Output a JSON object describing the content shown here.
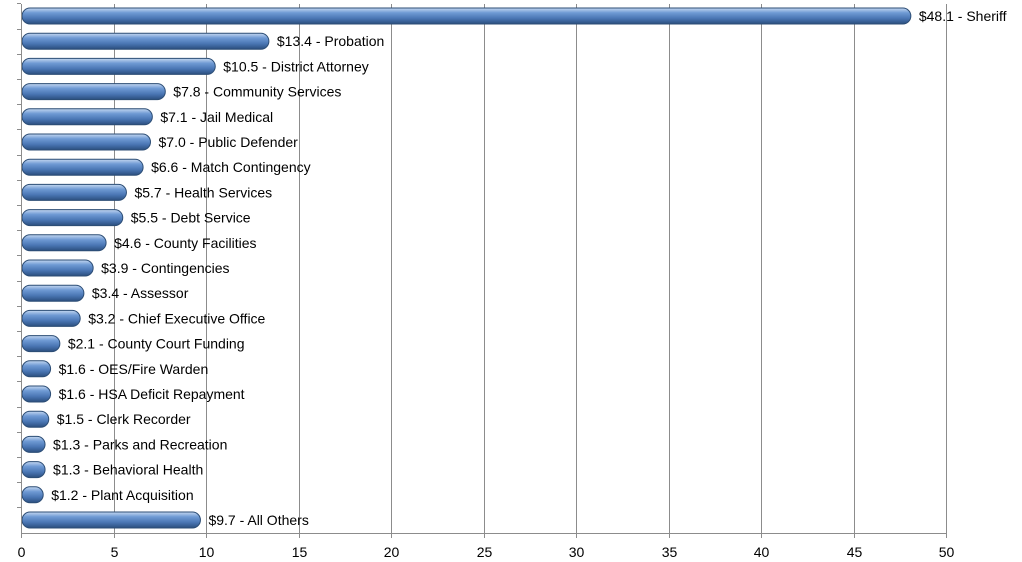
{
  "chart_data": {
    "type": "bar",
    "orientation": "horizontal",
    "categories": [
      "Sheriff",
      "Probation",
      "District Attorney",
      "Community Services",
      "Jail Medical",
      "Public Defender",
      "Match Contingency",
      "Health Services",
      "Debt Service",
      "County Facilities",
      "Contingencies",
      "Assessor",
      "Chief Executive Office",
      "County Court Funding",
      "OES/Fire Warden",
      "HSA Deficit Repayment",
      "Clerk Recorder",
      "Parks and Recreation",
      "Behavioral Health",
      "Plant Acquisition",
      "All Others"
    ],
    "values": [
      48.1,
      13.4,
      10.5,
      7.8,
      7.1,
      7.0,
      6.6,
      5.7,
      5.5,
      4.6,
      3.9,
      3.4,
      3.2,
      2.1,
      1.6,
      1.6,
      1.5,
      1.3,
      1.3,
      1.2,
      9.7
    ],
    "data_labels": [
      "$48.1 - Sheriff",
      "$13.4 - Probation",
      "$10.5 - District Attorney",
      "$7.8 - Community Services",
      "$7.1 - Jail Medical",
      "$7.0 - Public Defender",
      "$6.6 - Match Contingency",
      "$5.7 - Health Services",
      "$5.5 - Debt Service",
      "$4.6 - County Facilities",
      "$3.9 - Contingencies",
      "$3.4 - Assessor",
      "$3.2 - Chief Executive Office",
      "$2.1 - County Court Funding",
      "$1.6 - OES/Fire Warden",
      "$1.6 - HSA Deficit Repayment",
      "$1.5 - Clerk Recorder",
      "$1.3 - Parks and Recreation",
      "$1.3 - Behavioral Health",
      "$1.2 - Plant Acquisition",
      "$9.7 - All Others"
    ],
    "x_ticks": [
      "0",
      "5",
      "10",
      "15",
      "20",
      "25",
      "30",
      "35",
      "40",
      "45",
      "50"
    ],
    "xlim": [
      0,
      50
    ],
    "grid": "vertical",
    "legend": "none",
    "title": "",
    "xlabel": "",
    "ylabel": "",
    "colors": {
      "bar": "#4f81bd",
      "bar_dark": "#2c4d75",
      "bar_light": "#9dbbe3",
      "grid": "#8c8c8c"
    }
  }
}
